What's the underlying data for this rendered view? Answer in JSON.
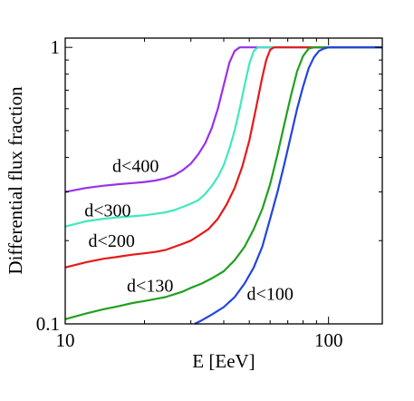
{
  "chart_data": {
    "type": "line",
    "title": "",
    "xlabel": "E [EeV]",
    "ylabel": "Differential flux fraction",
    "x_scale": "log",
    "y_scale": "log",
    "xlim": [
      10,
      160
    ],
    "ylim": [
      0.1,
      1.08
    ],
    "x_ticks": [
      {
        "value": 10,
        "label": "10"
      },
      {
        "value": 100,
        "label": "100"
      }
    ],
    "y_ticks": [
      {
        "value": 0.1,
        "label": "0.1"
      },
      {
        "value": 1,
        "label": "1"
      }
    ],
    "grid": false,
    "legend": "none",
    "series": [
      {
        "name": "d<400",
        "color": "#9b30e8",
        "label_at": [
          18.5,
          0.355
        ],
        "x": [
          10,
          12,
          14,
          16,
          18,
          20,
          22,
          24,
          26,
          28,
          30,
          32,
          34,
          36,
          38,
          40,
          42,
          44,
          46,
          160
        ],
        "y": [
          0.3,
          0.31,
          0.316,
          0.32,
          0.323,
          0.326,
          0.33,
          0.336,
          0.345,
          0.36,
          0.38,
          0.41,
          0.45,
          0.51,
          0.6,
          0.73,
          0.88,
          0.97,
          1.0,
          1.0
        ]
      },
      {
        "name": "d<300",
        "color": "#40e8c0",
        "label_at": [
          14.5,
          0.245
        ],
        "x": [
          10,
          12,
          14,
          16,
          18,
          20,
          22,
          24,
          26,
          28,
          30,
          32,
          34,
          36,
          38,
          40,
          42,
          44,
          46,
          48,
          50,
          52,
          54,
          160
        ],
        "y": [
          0.225,
          0.235,
          0.24,
          0.243,
          0.245,
          0.247,
          0.25,
          0.253,
          0.258,
          0.265,
          0.272,
          0.28,
          0.295,
          0.315,
          0.34,
          0.375,
          0.43,
          0.5,
          0.6,
          0.73,
          0.87,
          0.97,
          1.0,
          1.0
        ]
      },
      {
        "name": "d<200",
        "color": "#e81818",
        "label_at": [
          15,
          0.19
        ],
        "x": [
          10,
          12,
          14,
          16,
          18,
          20,
          22,
          24,
          26,
          28,
          30,
          32,
          35,
          38,
          41,
          44,
          47,
          50,
          53,
          56,
          58,
          60,
          62,
          160
        ],
        "y": [
          0.16,
          0.167,
          0.172,
          0.175,
          0.178,
          0.18,
          0.182,
          0.185,
          0.19,
          0.195,
          0.2,
          0.208,
          0.22,
          0.24,
          0.27,
          0.31,
          0.37,
          0.46,
          0.6,
          0.78,
          0.9,
          0.98,
          1.0,
          1.0
        ]
      },
      {
        "name": "d<130",
        "color": "#22a020",
        "label_at": [
          21,
          0.131
        ],
        "x": [
          10,
          12,
          14,
          16,
          18,
          20,
          22,
          24,
          26,
          28,
          30,
          33,
          36,
          40,
          44,
          48,
          52,
          56,
          60,
          64,
          68,
          72,
          76,
          80,
          84,
          88,
          160
        ],
        "y": [
          0.104,
          0.109,
          0.113,
          0.116,
          0.119,
          0.121,
          0.123,
          0.125,
          0.128,
          0.131,
          0.135,
          0.14,
          0.146,
          0.155,
          0.17,
          0.19,
          0.22,
          0.26,
          0.32,
          0.41,
          0.53,
          0.67,
          0.82,
          0.93,
          0.99,
          1.0,
          1.0
        ]
      },
      {
        "name": "d<100",
        "color": "#2244e0",
        "label_at": [
          60,
          0.122
        ],
        "x": [
          31,
          33,
          36,
          40,
          44,
          48,
          52,
          56,
          60,
          64,
          68,
          72,
          76,
          80,
          84,
          88,
          92,
          96,
          100,
          104,
          160
        ],
        "y": [
          0.1,
          0.103,
          0.108,
          0.115,
          0.125,
          0.14,
          0.16,
          0.19,
          0.24,
          0.3,
          0.38,
          0.48,
          0.6,
          0.72,
          0.84,
          0.92,
          0.97,
          0.99,
          1.0,
          1.0,
          1.0
        ]
      }
    ]
  }
}
